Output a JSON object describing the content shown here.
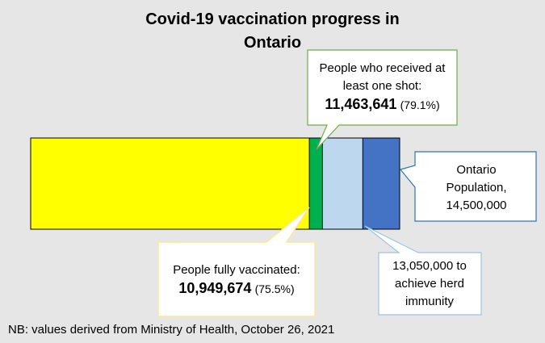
{
  "chart_data": {
    "type": "overlap-bar",
    "title": "Covid-19 vaccination progress in Ontario",
    "note": "NB: values derived from Ministry of Health, October 26, 2021",
    "xlim": [
      0,
      14500000
    ],
    "series": [
      {
        "name": "Ontario Population,",
        "color": "#4472c4",
        "values": [
          14500000
        ],
        "value_labels": [
          "14,500,000"
        ]
      },
      {
        "name": "to achieve herd immunity",
        "color": "#bdd7ee",
        "values": [
          13050000
        ],
        "value_labels": [
          "13,050,000"
        ]
      },
      {
        "name": "People who received at least one shot:",
        "color": "#00b050",
        "values": [
          11463641
        ],
        "value_labels": [
          "11,463,641"
        ],
        "shares": [
          79.1
        ],
        "share_labels": [
          "(79.1%)"
        ]
      },
      {
        "name": "People fully vaccinated:",
        "color": "#ffff00",
        "values": [
          10949674
        ],
        "value_labels": [
          "10,949,674"
        ],
        "shares": [
          75.5
        ],
        "share_labels": [
          "(75.5%)"
        ]
      }
    ]
  }
}
